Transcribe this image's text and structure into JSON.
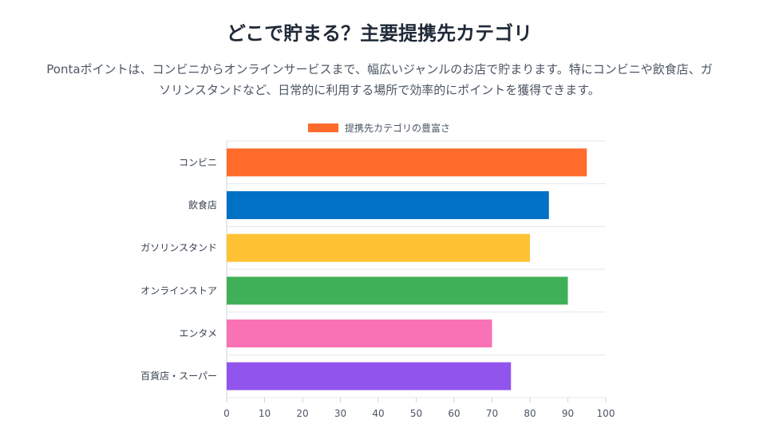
{
  "header": {
    "title": "どこで貯まる？主要提携先カテゴリ",
    "description_line1": "Pontaポイントは、コンビニからオンラインサービスまで、幅広いジャンルのお店で貯まります。特にコンビニや飲食店、ガ",
    "description_line2": "ソリンスタンドなど、日常的に利用する場所で効率的にポイントを獲得できます。"
  },
  "chart_data": {
    "type": "bar",
    "orientation": "horizontal",
    "categories": [
      "コンビニ",
      "飲食店",
      "ガソリンスタンド",
      "オンラインストア",
      "エンタメ",
      "百貨店・スーパー"
    ],
    "series": [
      {
        "name": "提携先カテゴリの豊富さ",
        "values": [
          95,
          85,
          80,
          90,
          70,
          75
        ],
        "colors": [
          "#ff6b2b",
          "#0071c5",
          "#ffc234",
          "#3fb057",
          "#f872b5",
          "#9155ee"
        ]
      }
    ],
    "xlim": [
      0,
      100
    ],
    "xticks": [
      0,
      10,
      20,
      30,
      40,
      50,
      60,
      70,
      80,
      90,
      100
    ],
    "legend_color": "#ff6b2b",
    "legend_position": "top",
    "grid": true
  }
}
